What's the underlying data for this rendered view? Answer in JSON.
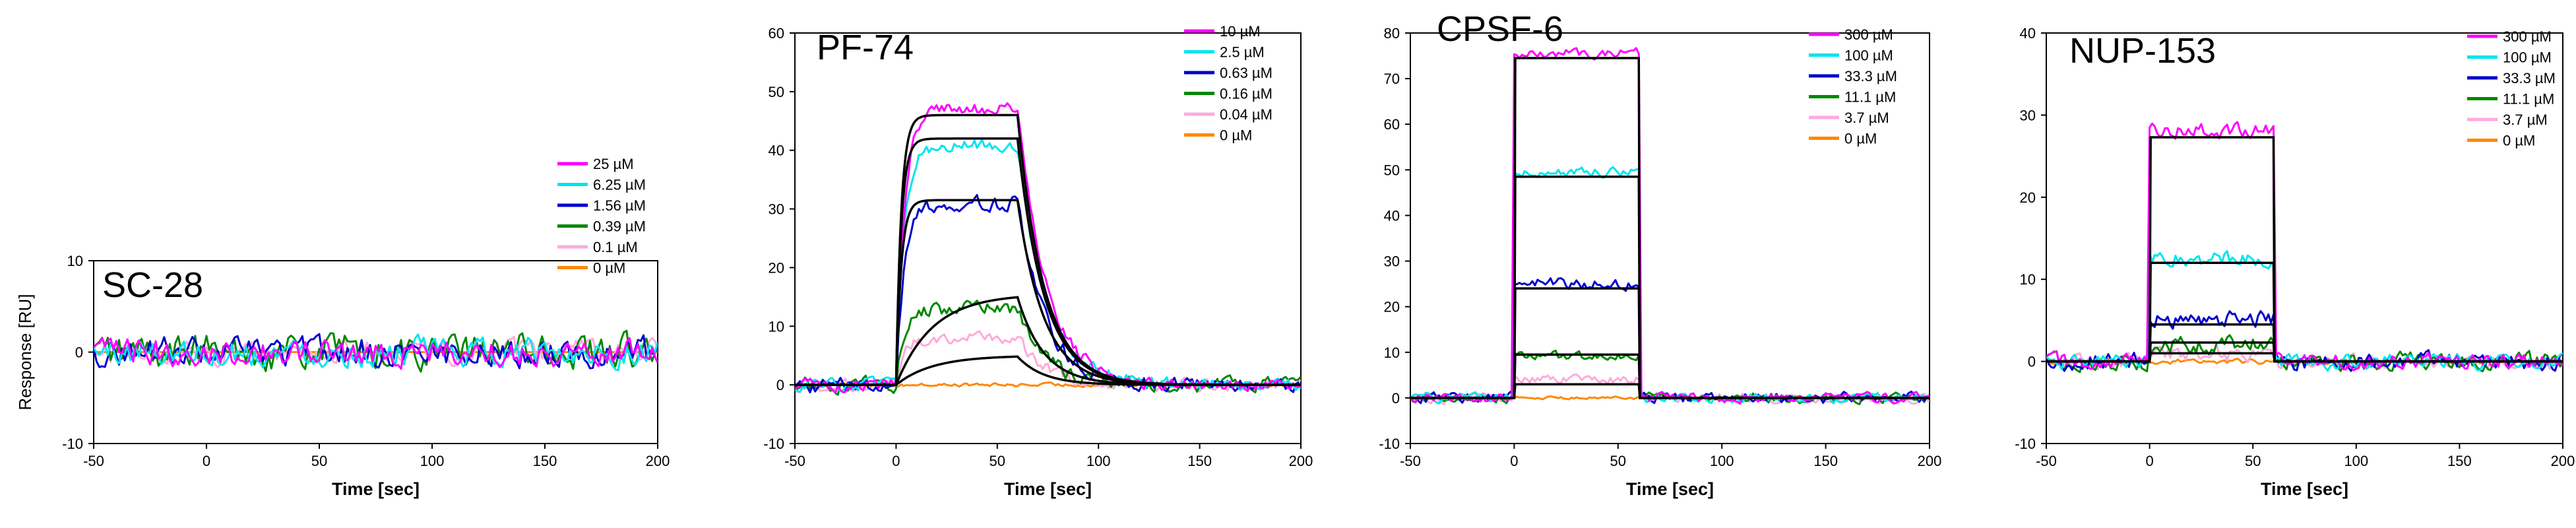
{
  "chart_data": [
    {
      "type": "line",
      "title": "SC-28",
      "xlabel": "Time [sec]",
      "ylabel": "Response [RU]",
      "xlim": [
        -50,
        200
      ],
      "ylim": [
        -10,
        10
      ],
      "xticks": [
        -50,
        0,
        50,
        100,
        150,
        200
      ],
      "yticks": [
        -10,
        0,
        10
      ],
      "legend_position": "top-right",
      "series": [
        {
          "name": "25 µM",
          "color": "#ff00ff",
          "plateau": 0,
          "noise": 1.4
        },
        {
          "name": "6.25 µM",
          "color": "#00e5ee",
          "plateau": 0,
          "noise": 1.4
        },
        {
          "name": "1.56 µM",
          "color": "#0000cc",
          "plateau": 0,
          "noise": 1.5
        },
        {
          "name": "0.39 µM",
          "color": "#008800",
          "plateau": 0,
          "noise": 1.8
        },
        {
          "name": "0.1 µM",
          "color": "#ffaadd",
          "plateau": 0,
          "noise": 1.2
        },
        {
          "name": "0 µM",
          "color": "#ff8800",
          "plateau": 0,
          "noise": 0.0
        }
      ],
      "fit_lines": []
    },
    {
      "type": "line",
      "title": "PF-74",
      "xlabel": "Time [sec]",
      "ylabel": "",
      "xlim": [
        -50,
        200
      ],
      "ylim": [
        -10,
        60
      ],
      "xticks": [
        -50,
        0,
        50,
        100,
        150,
        200
      ],
      "yticks": [
        -10,
        0,
        10,
        20,
        30,
        40,
        50,
        60
      ],
      "legend_position": "top-right",
      "kinetics": "slow",
      "series": [
        {
          "name": "10 µM",
          "color": "#ff00ff",
          "plateau": 47,
          "noise": 1.0
        },
        {
          "name": "2.5 µM",
          "color": "#00e5ee",
          "plateau": 41,
          "noise": 1.0
        },
        {
          "name": "0.63 µM",
          "color": "#0000cc",
          "plateau": 31,
          "noise": 1.2
        },
        {
          "name": "0.16 µM",
          "color": "#008800",
          "plateau": 13,
          "noise": 1.2
        },
        {
          "name": "0.04 µM",
          "color": "#ffaadd",
          "plateau": 8,
          "noise": 1.0
        },
        {
          "name": "0 µM",
          "color": "#ff8800",
          "plateau": 0,
          "noise": 0.3
        }
      ],
      "fit_lines": [
        46,
        42,
        31.5,
        15.5,
        5
      ]
    },
    {
      "type": "line",
      "title": "CPSF-6",
      "xlabel": "Time [sec]",
      "ylabel": "",
      "xlim": [
        -50,
        200
      ],
      "ylim": [
        -10,
        80
      ],
      "xticks": [
        -50,
        0,
        50,
        100,
        150,
        200
      ],
      "yticks": [
        -10,
        0,
        10,
        20,
        30,
        40,
        50,
        60,
        70,
        80
      ],
      "legend_position": "top-right",
      "kinetics": "fast",
      "series": [
        {
          "name": "300 µM",
          "color": "#ff00ff",
          "plateau": 75.5,
          "noise": 1.0
        },
        {
          "name": "100 µM",
          "color": "#00e5ee",
          "plateau": 49.5,
          "noise": 1.0
        },
        {
          "name": "33.3 µM",
          "color": "#0000cc",
          "plateau": 25,
          "noise": 1.2
        },
        {
          "name": "11.1 µM",
          "color": "#008800",
          "plateau": 9,
          "noise": 1.0
        },
        {
          "name": "3.7 µM",
          "color": "#ffaadd",
          "plateau": 4,
          "noise": 1.0
        },
        {
          "name": "0 µM",
          "color": "#ff8800",
          "plateau": 0,
          "noise": 0.3
        }
      ],
      "fit_lines": [
        74.5,
        48.5,
        24,
        9.5,
        3
      ]
    },
    {
      "type": "line",
      "title": "NUP-153",
      "xlabel": "Time [sec]",
      "ylabel": "",
      "xlim": [
        -50,
        200
      ],
      "ylim": [
        -10,
        40
      ],
      "xticks": [
        -50,
        0,
        50,
        100,
        150,
        200
      ],
      "yticks": [
        -10,
        0,
        10,
        20,
        30,
        40
      ],
      "legend_position": "top-right",
      "kinetics": "fast",
      "series": [
        {
          "name": "300 µM",
          "color": "#ff00ff",
          "plateau": 28,
          "noise": 0.9
        },
        {
          "name": "100 µM",
          "color": "#00e5ee",
          "plateau": 12.5,
          "noise": 0.9
        },
        {
          "name": "33.3 µM",
          "color": "#0000cc",
          "plateau": 5,
          "noise": 1.0
        },
        {
          "name": "11.1 µM",
          "color": "#008800",
          "plateau": 2,
          "noise": 1.0
        },
        {
          "name": "3.7 µM",
          "color": "#ffaadd",
          "plateau": 1,
          "noise": 0.9
        },
        {
          "name": "0 µM",
          "color": "#ff8800",
          "plateau": 0,
          "noise": 0.3
        }
      ],
      "fit_lines": [
        27.3,
        12,
        4.5,
        2.3,
        1
      ]
    }
  ]
}
